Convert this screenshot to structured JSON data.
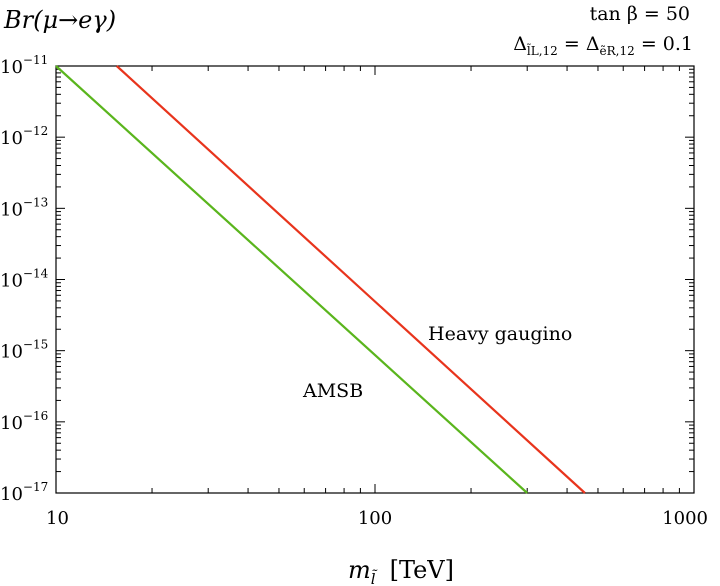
{
  "chart_data": {
    "type": "line",
    "title": "",
    "ylabel": "Br(μ→eγ)",
    "xlabel_main": "m",
    "xlabel_sub": "l̃",
    "xlabel_unit": "[TeV]",
    "xscale": "log",
    "yscale": "log",
    "xlim": [
      10,
      1000
    ],
    "ylim": [
      1e-17,
      1e-11
    ],
    "x_ticks": [
      {
        "value": 10,
        "label": "10"
      },
      {
        "value": 100,
        "label": "100"
      },
      {
        "value": 1000,
        "label": "1000"
      }
    ],
    "y_ticks": [
      {
        "exp": -11,
        "base": "10",
        "sup": "−11"
      },
      {
        "exp": -12,
        "base": "10",
        "sup": "−12"
      },
      {
        "exp": -13,
        "base": "10",
        "sup": "−13"
      },
      {
        "exp": -14,
        "base": "10",
        "sup": "−14"
      },
      {
        "exp": -15,
        "base": "10",
        "sup": "−15"
      },
      {
        "exp": -16,
        "base": "10",
        "sup": "−16"
      },
      {
        "exp": -17,
        "base": "10",
        "sup": "−17"
      }
    ],
    "series": [
      {
        "name": "Heavy gaugino",
        "color": "#e8341c",
        "x": [
          15.5,
          455
        ],
        "y": [
          1e-11,
          1e-17
        ]
      },
      {
        "name": "AMSB",
        "color": "#5ab51d",
        "x": [
          10,
          300
        ],
        "y": [
          1e-11,
          1e-17
        ]
      }
    ],
    "annotations": {
      "tanbeta": "tan β = 50",
      "delta": {
        "d1": "Δ",
        "sub1": "l̃L,12",
        "eq1": " = ",
        "d2": "Δ",
        "sub2": "ẽR,12",
        "eq2": " = 0.1"
      },
      "heavy_label": "Heavy gaugino",
      "amsb_label": "AMSB"
    }
  }
}
